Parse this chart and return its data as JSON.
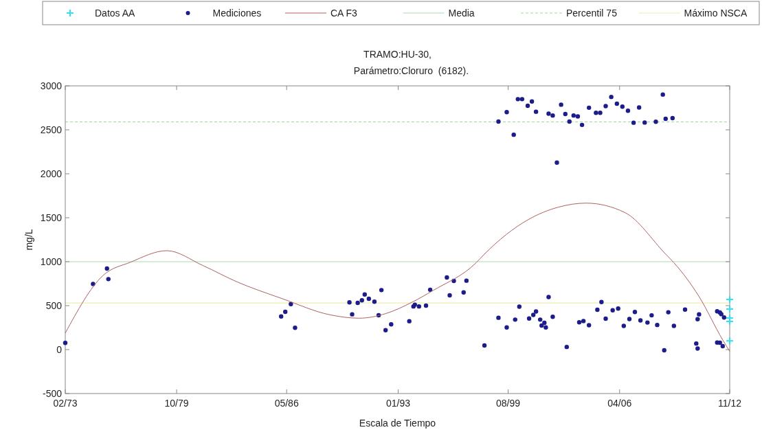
{
  "chart_data": {
    "type": "scatter",
    "title": "TRAMO:HU-30,",
    "subtitle": "Parámetro:Cloruro  (6182).",
    "xlabel": "Escala de Tiempo",
    "ylabel": "mg/L",
    "xlim": [
      "1973-02",
      "2012-11"
    ],
    "xticks": [
      {
        "value": "1973-02",
        "label": "02/73"
      },
      {
        "value": "1979-10",
        "label": "10/79"
      },
      {
        "value": "1986-05",
        "label": "05/86"
      },
      {
        "value": "1993-01",
        "label": "01/93"
      },
      {
        "value": "1999-08",
        "label": "08/99"
      },
      {
        "value": "2006-04",
        "label": "04/06"
      },
      {
        "value": "2012-11",
        "label": "11/12"
      }
    ],
    "ylim": [
      -500,
      3000
    ],
    "yticks": [
      -500,
      0,
      500,
      1000,
      1500,
      2000,
      2500,
      3000
    ],
    "grid": false,
    "legend": "top",
    "series": [
      {
        "name": "Datos AA",
        "marker": "cross",
        "color": "#33e0f0",
        "x": [
          "2012-11",
          "2012-11",
          "2012-11",
          "2012-11",
          "2012-11"
        ],
        "values": [
          570,
          460,
          360,
          320,
          100
        ]
      },
      {
        "name": "Mediciones",
        "marker": "circle",
        "color": "#1c1c8a",
        "x": [
          "1973-02",
          "1974-10",
          "1975-08",
          "1975-09",
          "1986-01",
          "1986-04",
          "1986-08",
          "1986-11",
          "1990-02",
          "1990-04",
          "1990-08",
          "1990-11",
          "1991-01",
          "1991-04",
          "1991-08",
          "1991-11",
          "1992-01",
          "1992-04",
          "1992-08",
          "1993-09",
          "1993-12",
          "1994-01",
          "1994-04",
          "1994-09",
          "1994-12",
          "1995-12",
          "1996-02",
          "1996-05",
          "1996-12",
          "1997-02",
          "1998-03",
          "1999-01",
          "1999-07",
          "2000-01",
          "2000-04",
          "2000-11",
          "2001-02",
          "2001-04",
          "2001-07",
          "2001-08",
          "2001-10",
          "2001-11",
          "2002-01",
          "2002-04",
          "2003-02",
          "2003-11",
          "2004-02",
          "2004-06",
          "2004-12",
          "2005-03",
          "2005-06",
          "2005-11",
          "2006-03",
          "2006-07",
          "2006-11",
          "2007-03",
          "2007-07",
          "2007-12",
          "2008-03",
          "2008-07",
          "2008-12",
          "2009-03",
          "2009-07",
          "2010-03",
          "2010-12",
          "2011-01",
          "2010-11",
          "2010-12",
          "2012-02",
          "2012-04",
          "2012-05",
          "2012-07",
          "2012-02",
          "2012-04",
          "2012-06",
          "1999-01",
          "1999-07",
          "1999-12",
          "2000-03",
          "2000-06",
          "2000-10",
          "2001-01",
          "2001-04",
          "2002-01",
          "2002-04",
          "2002-07",
          "2002-10",
          "2003-01",
          "2003-04",
          "2003-07",
          "2003-10",
          "2004-01",
          "2004-06",
          "2004-11",
          "2005-02",
          "2005-06",
          "2005-10",
          "2006-02",
          "2006-06",
          "2006-10",
          "2007-02",
          "2007-06",
          "2007-10",
          "2008-06",
          "2008-11",
          "2009-01",
          "2009-06"
        ],
        "values": [
          76,
          747,
          922,
          802,
          377,
          430,
          518,
          248,
          537,
          401,
          531,
          560,
          627,
          578,
          545,
          391,
          677,
          221,
          287,
          323,
          491,
          511,
          491,
          500,
          681,
          820,
          617,
          781,
          650,
          784,
          47,
          362,
          252,
          341,
          488,
          354,
          395,
          434,
          341,
          274,
          305,
          252,
          598,
          373,
          30,
          311,
          325,
          277,
          453,
          541,
          352,
          447,
          467,
          269,
          348,
          428,
          332,
          308,
          390,
          280,
          -8,
          425,
          269,
          455,
          346,
          401,
          69,
          12,
          436,
          422,
          403,
          365,
          80,
          78,
          39,
          2594,
          2701,
          2444,
          2849,
          2849,
          2773,
          2822,
          2706,
          2684,
          2663,
          2127,
          2786,
          2680,
          2594,
          2663,
          2652,
          2556,
          2751,
          2693,
          2693,
          2770,
          2874,
          2797,
          2764,
          2717,
          2581,
          2754,
          2583,
          2592,
          2901,
          2625,
          2633
        ]
      },
      {
        "name": "CA F3",
        "type": "line",
        "marker": "none",
        "line_style": "solid",
        "color": "#b06060",
        "x": [
          "1973-02",
          "1975-05",
          "1977-01",
          "1979-03",
          "1981-05",
          "1983-05",
          "1986-02",
          "1988-12",
          "1990-09",
          "1992-04",
          "1993-11",
          "1995-02",
          "1997-09",
          "1998-03",
          "2000-10",
          "2002-08",
          "2004-04",
          "2006-08",
          "2009-01",
          "2009-07",
          "2011-01",
          "2012-06",
          "2012-11"
        ],
        "values": [
          188,
          840,
          995,
          1125,
          955,
          773,
          578,
          396,
          357,
          409,
          539,
          672,
          988,
          1086,
          1475,
          1620,
          1666,
          1557,
          1086,
          988,
          603,
          110,
          -20
        ]
      }
    ],
    "ref_lines": [
      {
        "axis": "y",
        "value": 1000,
        "label": "Media",
        "color": "#a8dcb0",
        "line_style": "solid"
      },
      {
        "axis": "y",
        "value": 2590,
        "label": "Percentil 75",
        "color": "#9ed8a0",
        "line_style": "dashed"
      },
      {
        "axis": "y",
        "value": 530,
        "label": "Máximo NSCA",
        "color": "#eeeeb0",
        "line_style": "solid"
      }
    ]
  }
}
